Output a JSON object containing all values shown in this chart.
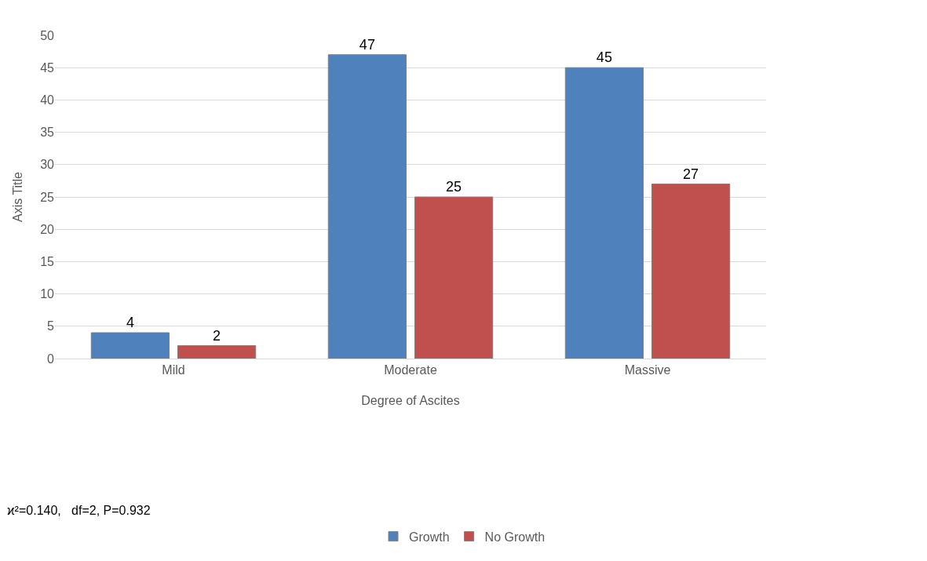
{
  "chart_data": {
    "type": "bar",
    "xlabel": "Degree of Ascites",
    "ylabel": "Axis Title",
    "categories": [
      "Mild",
      "Moderate",
      "Massive"
    ],
    "series": [
      {
        "name": "Growth",
        "color": "#4f81bd",
        "values": [
          4,
          47,
          45
        ]
      },
      {
        "name": "No Growth",
        "color": "#c0504d",
        "values": [
          2,
          25,
          27
        ]
      }
    ],
    "ylim": [
      0,
      50
    ],
    "yticks": [
      0,
      5,
      10,
      15,
      20,
      25,
      30,
      35,
      40,
      45,
      50
    ],
    "grid": "y",
    "legend": "bottom",
    "data_labels": true,
    "annotations": [
      "ϰ²=0.140,   df=2, P=0.932"
    ]
  }
}
